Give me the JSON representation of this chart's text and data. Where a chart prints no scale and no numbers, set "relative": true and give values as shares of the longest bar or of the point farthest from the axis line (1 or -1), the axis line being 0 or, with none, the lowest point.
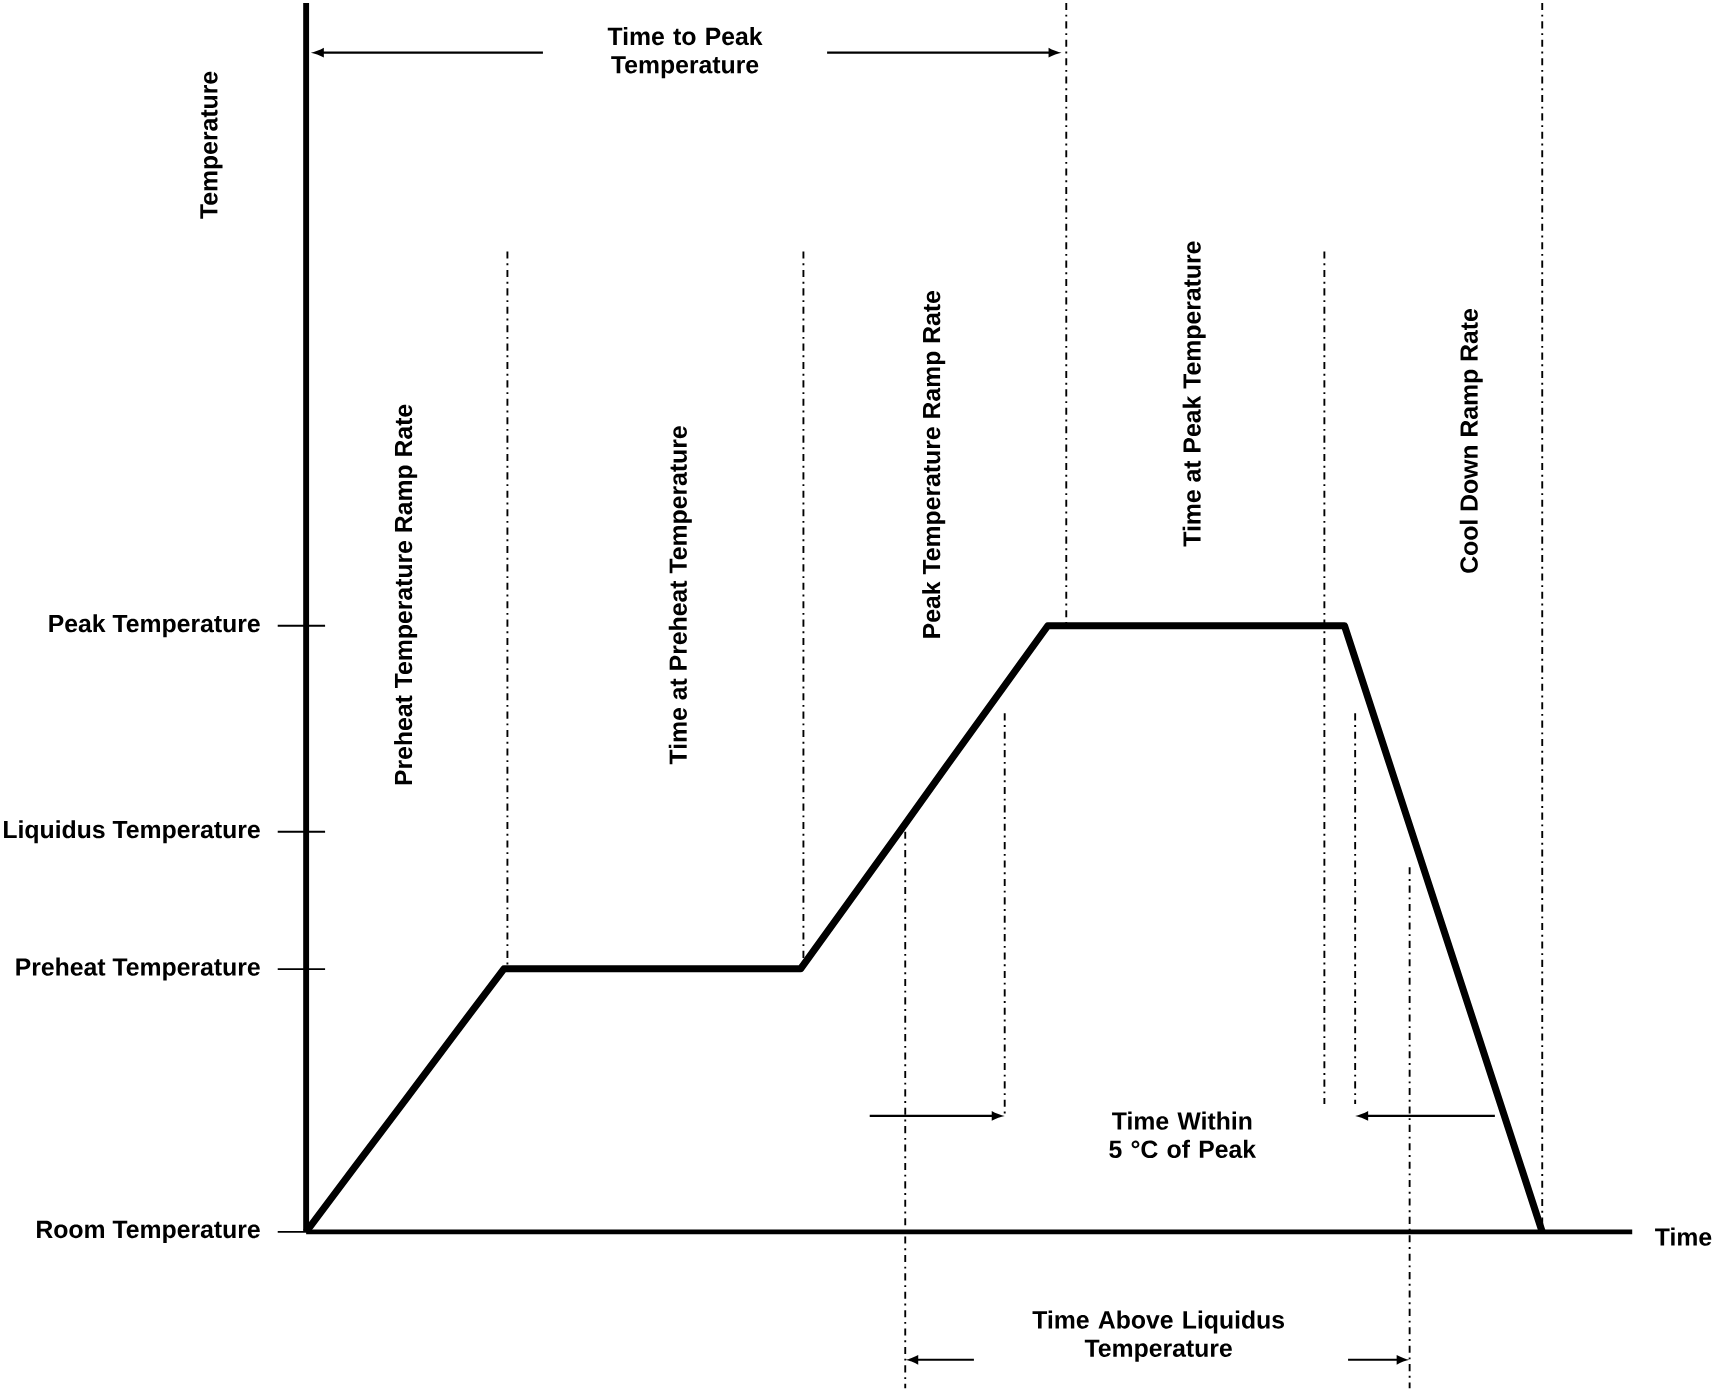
{
  "chart_data": {
    "type": "line",
    "relative": true,
    "xlabel": "Time",
    "categories": [
      null,
      null,
      null,
      null,
      null,
      null,
      null,
      null,
      null,
      null,
      null,
      null,
      null,
      null,
      null,
      null,
      null,
      null,
      null,
      null,
      null,
      null,
      null,
      null,
      null,
      null
    ],
    "series": [
      {
        "color": "#000000",
        "values": [
          0,
          0.109,
          0.217,
          0.326,
          0.434,
          0.434,
          0.434,
          0.434,
          0.434,
          0.434,
          0.434,
          0.547,
          0.66,
          0.774,
          0.887,
          1,
          1,
          1,
          1,
          1,
          1,
          1,
          0.75,
          0.5,
          0.25,
          0
        ]
      }
    ],
    "annotations": [
      "Room Temperature",
      "Preheat Temperature",
      "Liquidus Temperature",
      "Peak Temperature",
      "Temperature",
      "Time to Peak Temperature",
      "Preheat Temperature Ramp Rate",
      "Time at Preheat Temperature",
      "Peak Temperature  Ramp Rate",
      "Time at Peak Temperature",
      "Cool Down  Ramp Rate",
      "Time Within 5 °C of Peak",
      "Time Above Liquidus Temperature"
    ],
    "grid": "x",
    "marker": "none",
    "line_style": "solid"
  }
}
